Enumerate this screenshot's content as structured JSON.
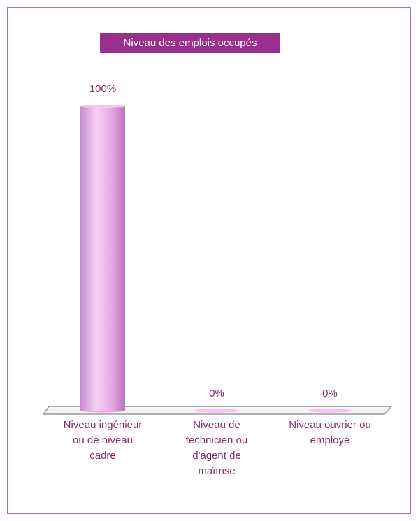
{
  "chart_data": {
    "type": "bar",
    "title": "Niveau des emplois occupés",
    "categories": [
      "Niveau ingénieur ou de niveau cadre",
      "Niveau de technicien ou d'agent de maîtrise",
      "Niveau ouvrier ou employé"
    ],
    "values": [
      100,
      0,
      0
    ],
    "value_labels": [
      "100%",
      "0%",
      "0%"
    ],
    "color": "#e7a8e4",
    "ylim": [
      0,
      100
    ]
  }
}
